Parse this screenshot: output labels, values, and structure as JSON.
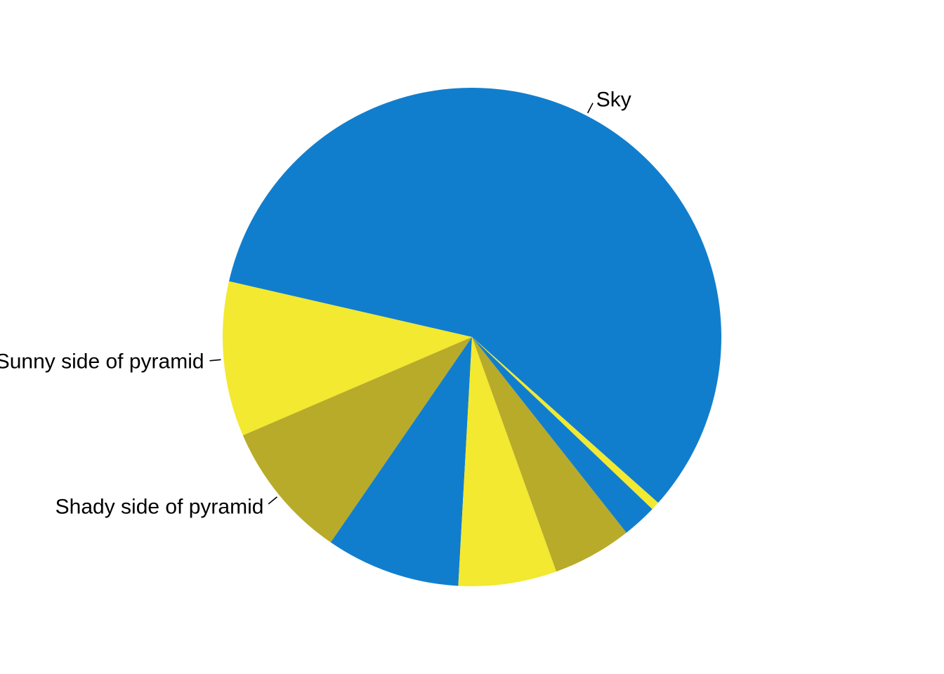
{
  "chart_data": {
    "type": "pie",
    "direction": "counterclockwise",
    "slices": [
      {
        "label": "Sky",
        "value": 59.27,
        "color": "#117ECD"
      },
      {
        "label": "Sunny side of pyramid",
        "value": 10.27,
        "color": "#F2E930"
      },
      {
        "label": "Shady side of pyramid",
        "value": 9.15,
        "color": "#B8AB29"
      },
      {
        "label": "",
        "value": 8.9,
        "color": "#117ECD"
      },
      {
        "label": "",
        "value": 6.51,
        "color": "#F2E930"
      },
      {
        "label": "",
        "value": 5.25,
        "color": "#B8AB29"
      },
      {
        "label": "",
        "value": 2.29,
        "color": "#117ECD"
      },
      {
        "label": "",
        "value": 0.56,
        "color": "#F2E930"
      }
    ],
    "legend": "none"
  }
}
